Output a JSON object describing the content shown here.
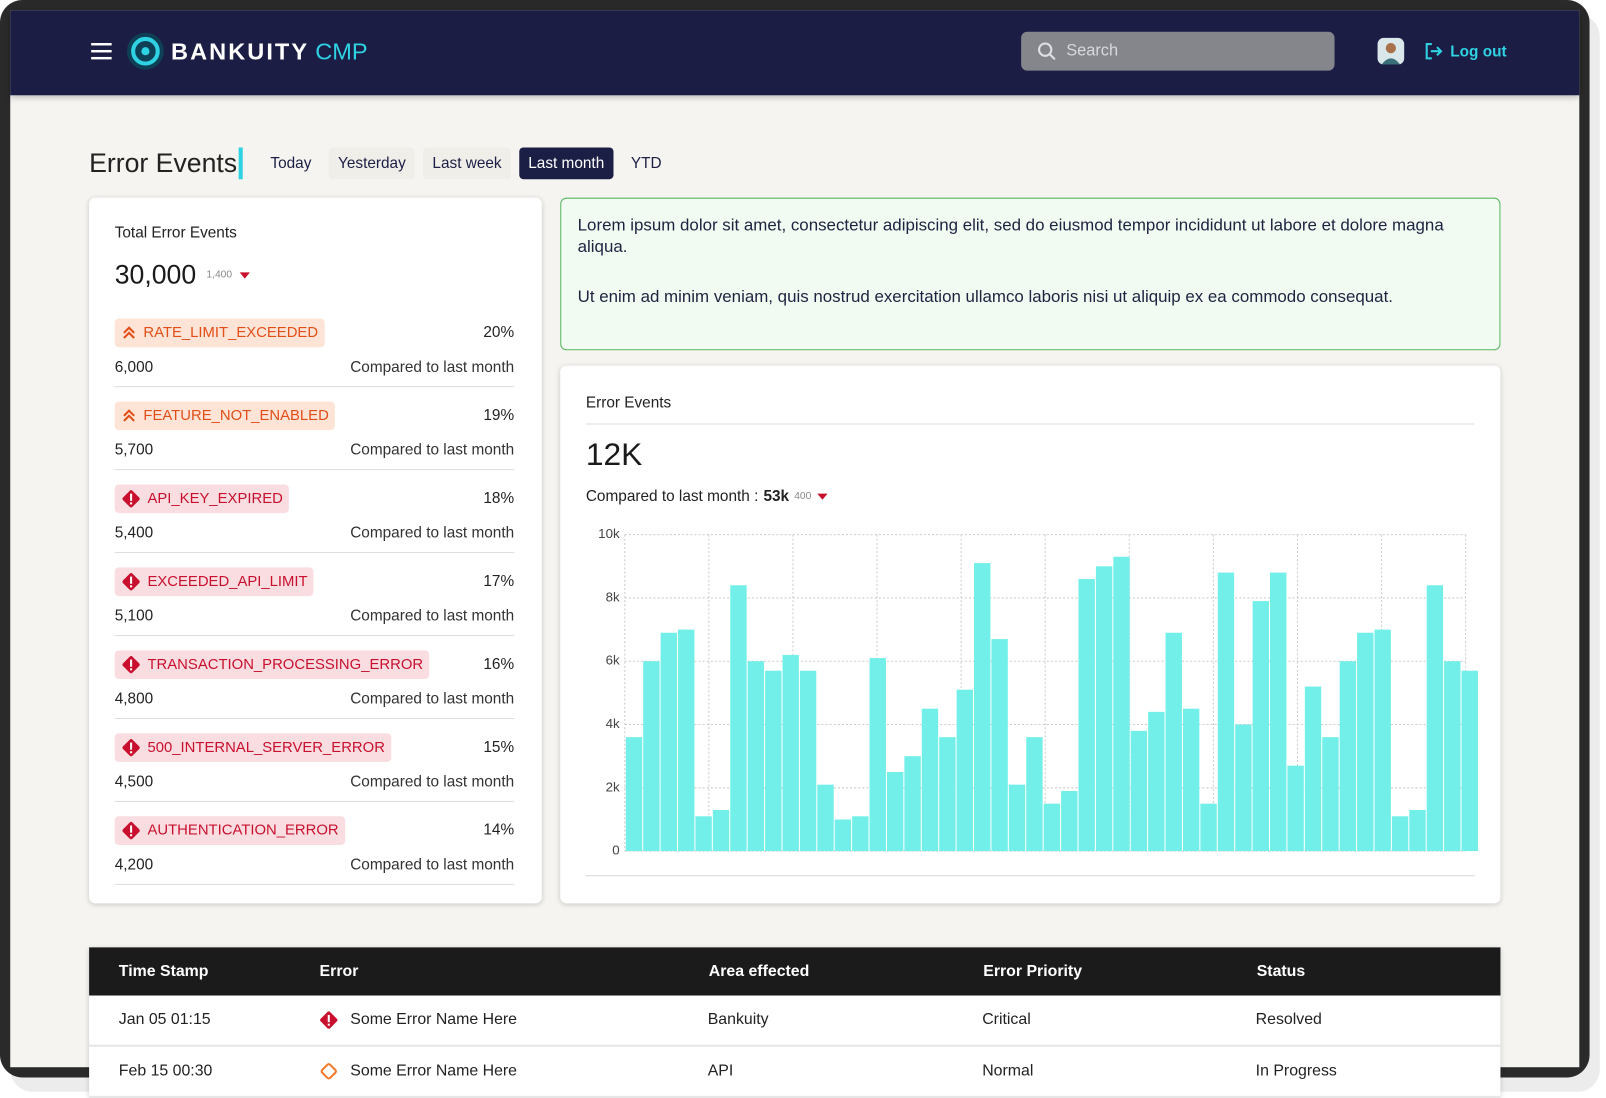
{
  "header": {
    "brand": "BANKUITY",
    "brand_suffix": "CMP",
    "search_placeholder": "Search",
    "logout": "Log out"
  },
  "page": {
    "title": "Error Events",
    "tabs": [
      "Today",
      "Yesterday",
      "Last week",
      "Last month",
      "YTD"
    ]
  },
  "summary": {
    "label": "Total Error Events",
    "total": "30,000",
    "change": "1,400",
    "items": [
      {
        "name": "RATE_LIMIT_EXCEEDED",
        "percent": "20%",
        "count": "6,000",
        "comparison": "Compared to last month"
      },
      {
        "name": "FEATURE_NOT_ENABLED",
        "percent": "19%",
        "count": "5,700",
        "comparison": "Compared to last month"
      },
      {
        "name": "API_KEY_EXPIRED",
        "percent": "18%",
        "count": "5,400",
        "comparison": "Compared to last month"
      },
      {
        "name": "EXCEEDED_API_LIMIT",
        "percent": "17%",
        "count": "5,100",
        "comparison": "Compared to last month"
      },
      {
        "name": "TRANSACTION_PROCESSING_ERROR",
        "percent": "16%",
        "count": "4,800",
        "comparison": "Compared to last month"
      },
      {
        "name": "500_INTERNAL_SERVER_ERROR",
        "percent": "15%",
        "count": "4,500",
        "comparison": "Compared to last month"
      },
      {
        "name": "AUTHENTICATION_ERROR",
        "percent": "14%",
        "count": "4,200",
        "comparison": "Compared to last month"
      }
    ]
  },
  "notice": {
    "paragraphs": [
      "Lorem ipsum dolor sit amet, consectetur adipiscing elit, sed do eiusmod tempor incididunt ut labore et dolore magna aliqua.",
      "Ut enim ad minim veniam, quis nostrud exercitation ullamco laboris nisi ut aliquip ex ea commodo consequat."
    ]
  },
  "chart_card": {
    "total": "12K",
    "comparison_label": "Compared to last month :",
    "comparison_value": "53k",
    "change": "400"
  },
  "chart_data": {
    "type": "bar",
    "title": "Error Events",
    "values": [
      3600,
      6000,
      6900,
      7000,
      1100,
      1300,
      8400,
      6000,
      5700,
      6200,
      5700,
      2100,
      1000,
      1100,
      6100,
      2500,
      3000,
      4500,
      3600,
      5100,
      9100,
      6700,
      2100,
      3600,
      1500,
      1900,
      8600,
      9000,
      9300,
      3800,
      4400,
      6900,
      4500,
      1500,
      8800,
      4000,
      7900,
      8800,
      2700,
      5200,
      3600,
      6000,
      6900,
      7000,
      1100,
      1300,
      8400,
      6000,
      5700
    ],
    "color": "#72efe8",
    "ylim": [
      0,
      10000
    ],
    "yticks": [
      0,
      {
        "value": 2000,
        "label": "2k"
      },
      {
        "value": 4000,
        "label": "4k"
      },
      {
        "value": 6000,
        "label": "6k"
      },
      {
        "value": 8000,
        "label": "8k"
      },
      {
        "value": 10000,
        "label": "10k"
      }
    ],
    "grid": true
  },
  "table": {
    "columns": [
      "Time Stamp",
      "Error",
      "Area effected",
      "Error Priority",
      "Status"
    ],
    "rows": [
      [
        "Jan 05 01:15",
        "Some Error Name Here",
        "Bankuity",
        "Critical",
        "Resolved"
      ],
      [
        "Feb 15 00:30",
        "Some Error Name Here",
        "API",
        "Normal",
        "In Progress"
      ]
    ]
  }
}
